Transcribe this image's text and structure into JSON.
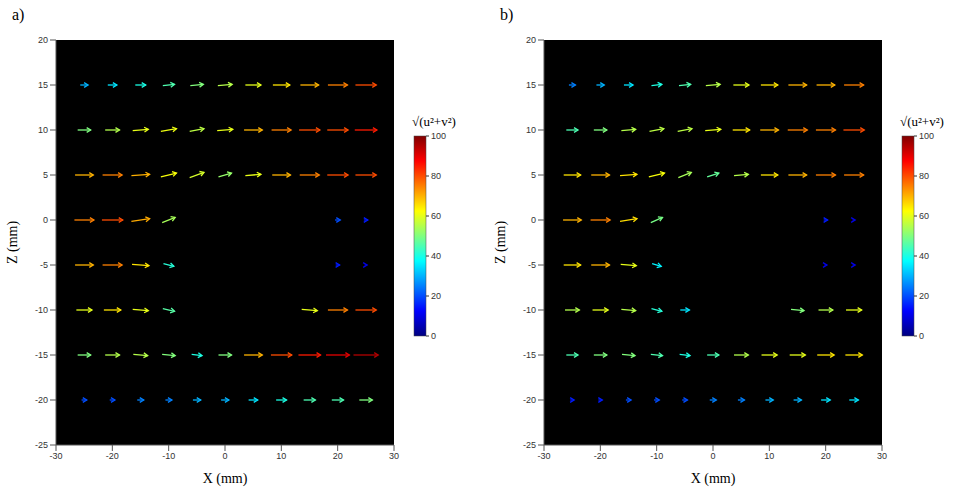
{
  "chart_data": [
    {
      "type": "quiver",
      "title": "a)",
      "x_label": "X (mm)",
      "y_label": "Z (mm)",
      "xlim": [
        -30,
        30
      ],
      "xticks": [
        -30,
        -20,
        -10,
        0,
        10,
        20,
        30
      ],
      "ylim": [
        -25,
        20
      ],
      "yticks": [
        -25,
        -20,
        -15,
        -10,
        -5,
        0,
        5,
        10,
        15,
        20
      ],
      "x": [
        -25,
        -20,
        -15,
        -10,
        -5,
        0,
        5,
        10,
        15,
        20,
        25
      ],
      "z": [
        15,
        10,
        5,
        0,
        -5,
        -10,
        -15,
        -20
      ],
      "u": [
        [
          30,
          35,
          40,
          45,
          50,
          55,
          60,
          65,
          70,
          75,
          80
        ],
        [
          50,
          55,
          60,
          60,
          55,
          60,
          70,
          75,
          80,
          80,
          85
        ],
        [
          70,
          75,
          70,
          60,
          55,
          50,
          60,
          70,
          75,
          80,
          80
        ],
        [
          75,
          80,
          70,
          50,
          null,
          null,
          null,
          null,
          null,
          20,
          15
        ],
        [
          70,
          75,
          65,
          40,
          null,
          null,
          null,
          null,
          null,
          15,
          10
        ],
        [
          60,
          65,
          60,
          45,
          null,
          null,
          null,
          null,
          60,
          75,
          80
        ],
        [
          50,
          55,
          55,
          50,
          40,
          50,
          70,
          80,
          85,
          90,
          95
        ],
        [
          20,
          20,
          25,
          25,
          30,
          30,
          35,
          40,
          45,
          45,
          50
        ]
      ],
      "v": [
        [
          0,
          0,
          0,
          5,
          5,
          5,
          0,
          0,
          0,
          0,
          0
        ],
        [
          0,
          0,
          5,
          10,
          10,
          5,
          0,
          0,
          0,
          0,
          0
        ],
        [
          0,
          0,
          5,
          15,
          20,
          15,
          5,
          0,
          0,
          0,
          0
        ],
        [
          0,
          0,
          10,
          20,
          null,
          null,
          null,
          null,
          null,
          0,
          0
        ],
        [
          0,
          0,
          -5,
          -10,
          null,
          null,
          null,
          null,
          null,
          0,
          0
        ],
        [
          0,
          0,
          -5,
          -10,
          null,
          null,
          null,
          null,
          -5,
          0,
          0
        ],
        [
          0,
          0,
          -5,
          -5,
          -5,
          0,
          0,
          0,
          0,
          0,
          0
        ],
        [
          0,
          0,
          0,
          0,
          0,
          0,
          0,
          0,
          0,
          0,
          0
        ]
      ],
      "colorbar": {
        "label": "√(u²+v²)",
        "range": [
          0,
          100
        ],
        "ticks": [
          0,
          20,
          40,
          60,
          80,
          100
        ]
      }
    },
    {
      "type": "quiver",
      "title": "b)",
      "x_label": "X (mm)",
      "y_label": "Z (mm)",
      "xlim": [
        -30,
        30
      ],
      "xticks": [
        -30,
        -20,
        -10,
        0,
        10,
        20,
        30
      ],
      "ylim": [
        -25,
        20
      ],
      "yticks": [
        -25,
        -20,
        -15,
        -10,
        -5,
        0,
        5,
        10,
        15,
        20
      ],
      "x": [
        -25,
        -20,
        -15,
        -10,
        -5,
        0,
        5,
        10,
        15,
        20,
        25
      ],
      "z": [
        15,
        10,
        5,
        0,
        -5,
        -10,
        -15,
        -20
      ],
      "u": [
        [
          25,
          30,
          35,
          40,
          45,
          55,
          60,
          65,
          70,
          70,
          75
        ],
        [
          45,
          50,
          55,
          55,
          55,
          60,
          65,
          70,
          75,
          75,
          80
        ],
        [
          65,
          70,
          65,
          60,
          50,
          45,
          55,
          65,
          70,
          75,
          75
        ],
        [
          70,
          75,
          65,
          45,
          null,
          null,
          null,
          null,
          null,
          15,
          10
        ],
        [
          65,
          70,
          60,
          35,
          null,
          null,
          null,
          null,
          null,
          10,
          10
        ],
        [
          55,
          60,
          55,
          40,
          35,
          null,
          null,
          null,
          50,
          55,
          60
        ],
        [
          45,
          50,
          50,
          45,
          40,
          45,
          55,
          60,
          60,
          65,
          65
        ],
        [
          15,
          15,
          20,
          20,
          20,
          25,
          25,
          30,
          30,
          35,
          35
        ]
      ],
      "v": [
        [
          0,
          0,
          0,
          5,
          5,
          5,
          0,
          0,
          0,
          0,
          0
        ],
        [
          0,
          0,
          5,
          10,
          10,
          5,
          0,
          0,
          0,
          0,
          0
        ],
        [
          0,
          0,
          5,
          15,
          20,
          15,
          5,
          0,
          0,
          0,
          0
        ],
        [
          0,
          0,
          10,
          20,
          null,
          null,
          null,
          null,
          null,
          0,
          0
        ],
        [
          0,
          0,
          -5,
          -10,
          null,
          null,
          null,
          null,
          null,
          0,
          0
        ],
        [
          0,
          0,
          -5,
          -10,
          0,
          null,
          null,
          null,
          -5,
          0,
          0
        ],
        [
          0,
          0,
          -5,
          -5,
          -5,
          0,
          0,
          0,
          0,
          0,
          0
        ],
        [
          0,
          0,
          0,
          0,
          0,
          0,
          0,
          0,
          0,
          0,
          0
        ]
      ],
      "colorbar": {
        "label": "√(u²+v²)",
        "range": [
          0,
          100
        ],
        "ticks": [
          0,
          20,
          40,
          60,
          80,
          100
        ]
      }
    }
  ]
}
